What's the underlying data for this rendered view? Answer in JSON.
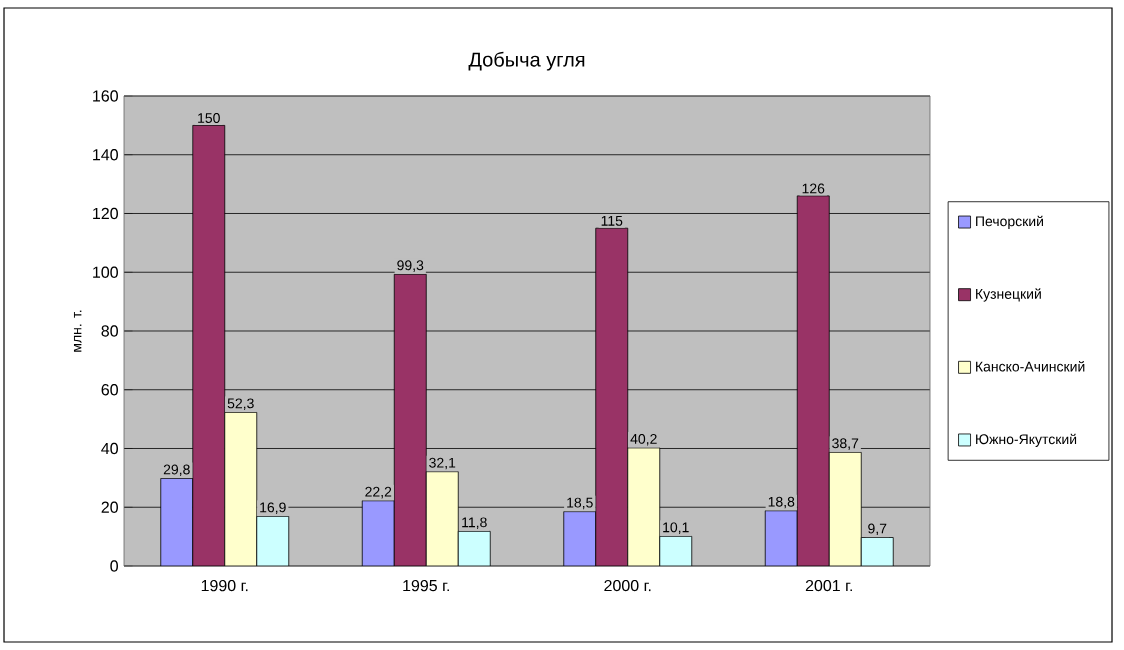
{
  "chart_data": {
    "type": "bar",
    "title": "Добыча угля",
    "ylabel": "млн. т.",
    "categories": [
      "1990 г.",
      "1995 г.",
      "2000 г.",
      "2001 г."
    ],
    "series": [
      {
        "name": "Печорский",
        "color": "#9999ff",
        "values": [
          29.8,
          22.2,
          18.5,
          18.8
        ],
        "value_labels": [
          "29,8",
          "22,2",
          "18,5",
          "18,8"
        ]
      },
      {
        "name": "Кузнецкий",
        "color": "#993366",
        "values": [
          150,
          99.3,
          115,
          126
        ],
        "value_labels": [
          "150",
          "99,3",
          "115",
          "126"
        ]
      },
      {
        "name": "Канско-Ачинский",
        "color": "#ffffcc",
        "values": [
          52.3,
          32.1,
          40.2,
          38.7
        ],
        "value_labels": [
          "52,3",
          "32,1",
          "40,2",
          "38,7"
        ]
      },
      {
        "name": "Южно-Якутский",
        "color": "#ccffff",
        "values": [
          16.9,
          11.8,
          10.1,
          9.7
        ],
        "value_labels": [
          "16,9",
          "11,8",
          "10,1",
          "9,7"
        ]
      }
    ],
    "ylim": [
      0,
      160
    ],
    "yticks": [
      0,
      20,
      40,
      60,
      80,
      100,
      120,
      140,
      160
    ],
    "grid": "y",
    "legend": "right"
  }
}
